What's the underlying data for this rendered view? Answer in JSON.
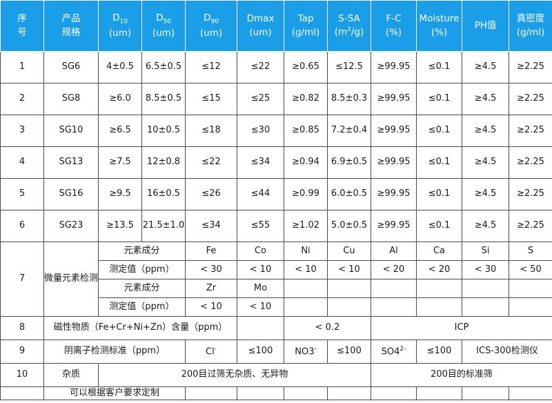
{
  "headers": {
    "no": [
      "序",
      "号"
    ],
    "product": [
      "产品",
      "规格"
    ],
    "d10": {
      "base": "D",
      "sub": "10",
      "unit": "(um)"
    },
    "d50": {
      "base": "D",
      "sub": "50",
      "unit": "(um)"
    },
    "d90": {
      "base": "D",
      "sub": "90",
      "unit": "(um)"
    },
    "dmax": [
      "Dmax",
      "(um)"
    ],
    "tap": [
      "Tap",
      "(g/ml)"
    ],
    "ssa": {
      "name": "S-SA",
      "unit_pre": "(m",
      "unit_sup": "2",
      "unit_post": "/g)"
    },
    "fc": [
      "F-C",
      "(%)"
    ],
    "moisture": [
      "Moisture",
      "(%)"
    ],
    "ph": "PH值",
    "density": [
      "真密度",
      "(g/ml)"
    ]
  },
  "rows": [
    {
      "no": "1",
      "product": "SG6",
      "d10": "4±0.5",
      "d50": "6.5±0.5",
      "d90": "≤12",
      "dmax": "≤22",
      "tap": "≥0.65",
      "ssa": "≤12.5",
      "fc": "≥99.95",
      "moisture": "≤0.1",
      "ph": "≥4.5",
      "density": "≥2.25"
    },
    {
      "no": "2",
      "product": "SG8",
      "d10": "≥6.0",
      "d50": "8.5±0.5",
      "d90": "≤15",
      "dmax": "≤25",
      "tap": "≥0.82",
      "ssa": "8.5±0.3",
      "fc": "≥99.95",
      "moisture": "≤0.1",
      "ph": "≥4.5",
      "density": "≥2.25"
    },
    {
      "no": "3",
      "product": "SG10",
      "d10": "≥6.5",
      "d50": "10±0.5",
      "d90": "≤18",
      "dmax": "≤30",
      "tap": "≥0.85",
      "ssa": "7.2±0.4",
      "fc": "≥99.95",
      "moisture": "≤0.1",
      "ph": "≥4.5",
      "density": "≥2.25"
    },
    {
      "no": "4",
      "product": "SG13",
      "d10": "≥7.5",
      "d50": "12±0.8",
      "d90": "≤22",
      "dmax": "≤34",
      "tap": "≥0.94",
      "ssa": "6.9±0.5",
      "fc": "≥99.95",
      "moisture": "≤0.1",
      "ph": "≥4.5",
      "density": "≥2.25"
    },
    {
      "no": "5",
      "product": "SG16",
      "d10": "≥9.5",
      "d50": "16±0.5",
      "d90": "≤26",
      "dmax": "≤44",
      "tap": "≥0.99",
      "ssa": "6.0±0.5",
      "fc": "≥99.95",
      "moisture": "≤0.1",
      "ph": "≥4.5",
      "density": "≥2.25"
    },
    {
      "no": "6",
      "product": "SG23",
      "d10": "≥13.5",
      "d50": "21.5±1.0",
      "d90": "≤34",
      "dmax": "≤55",
      "tap": "≥1.02",
      "ssa": "5.0±0.5",
      "fc": "≥99.95",
      "moisture": "≤0.1",
      "ph": "≥4.5",
      "density": "≥2.25"
    }
  ],
  "trace": {
    "no": "7",
    "title": "微量元素检测标准",
    "element_label": "元素成分",
    "value_label": "测定值（ppm）",
    "elements_1": [
      "Fe",
      "Co",
      "Ni",
      "Cu",
      "Al",
      "Ca",
      "Si",
      "S"
    ],
    "values_1": [
      "< 30",
      "< 10",
      "< 10",
      "< 10",
      "< 20",
      "< 20",
      "< 30",
      "< 50"
    ],
    "elements_2": [
      "Zr",
      "Mo"
    ],
    "values_2": [
      "< 10",
      "< 10"
    ]
  },
  "magnetic": {
    "no": "8",
    "label": "磁性物质（Fe+Cr+Ni+Zn）含量（ppm）",
    "value": "< 0.2",
    "method": "ICP"
  },
  "anion": {
    "no": "9",
    "label": "阴离子检测标准（ppm）",
    "cl": {
      "base": "Cl",
      "sup": "-"
    },
    "cl_value": "≤100",
    "no3": {
      "base": "NO3",
      "sup": "-"
    },
    "no3_value": "≤100",
    "so4": {
      "base": "SO4",
      "sup": "2-"
    },
    "so4_value": "≤100",
    "method": "ICS-300检测仪"
  },
  "impurity": {
    "no": "10",
    "label": "杂质",
    "value": "200目过筛无杂质、无异物",
    "method": "200目的标准筛"
  },
  "note": "可以根据客户要求定制"
}
